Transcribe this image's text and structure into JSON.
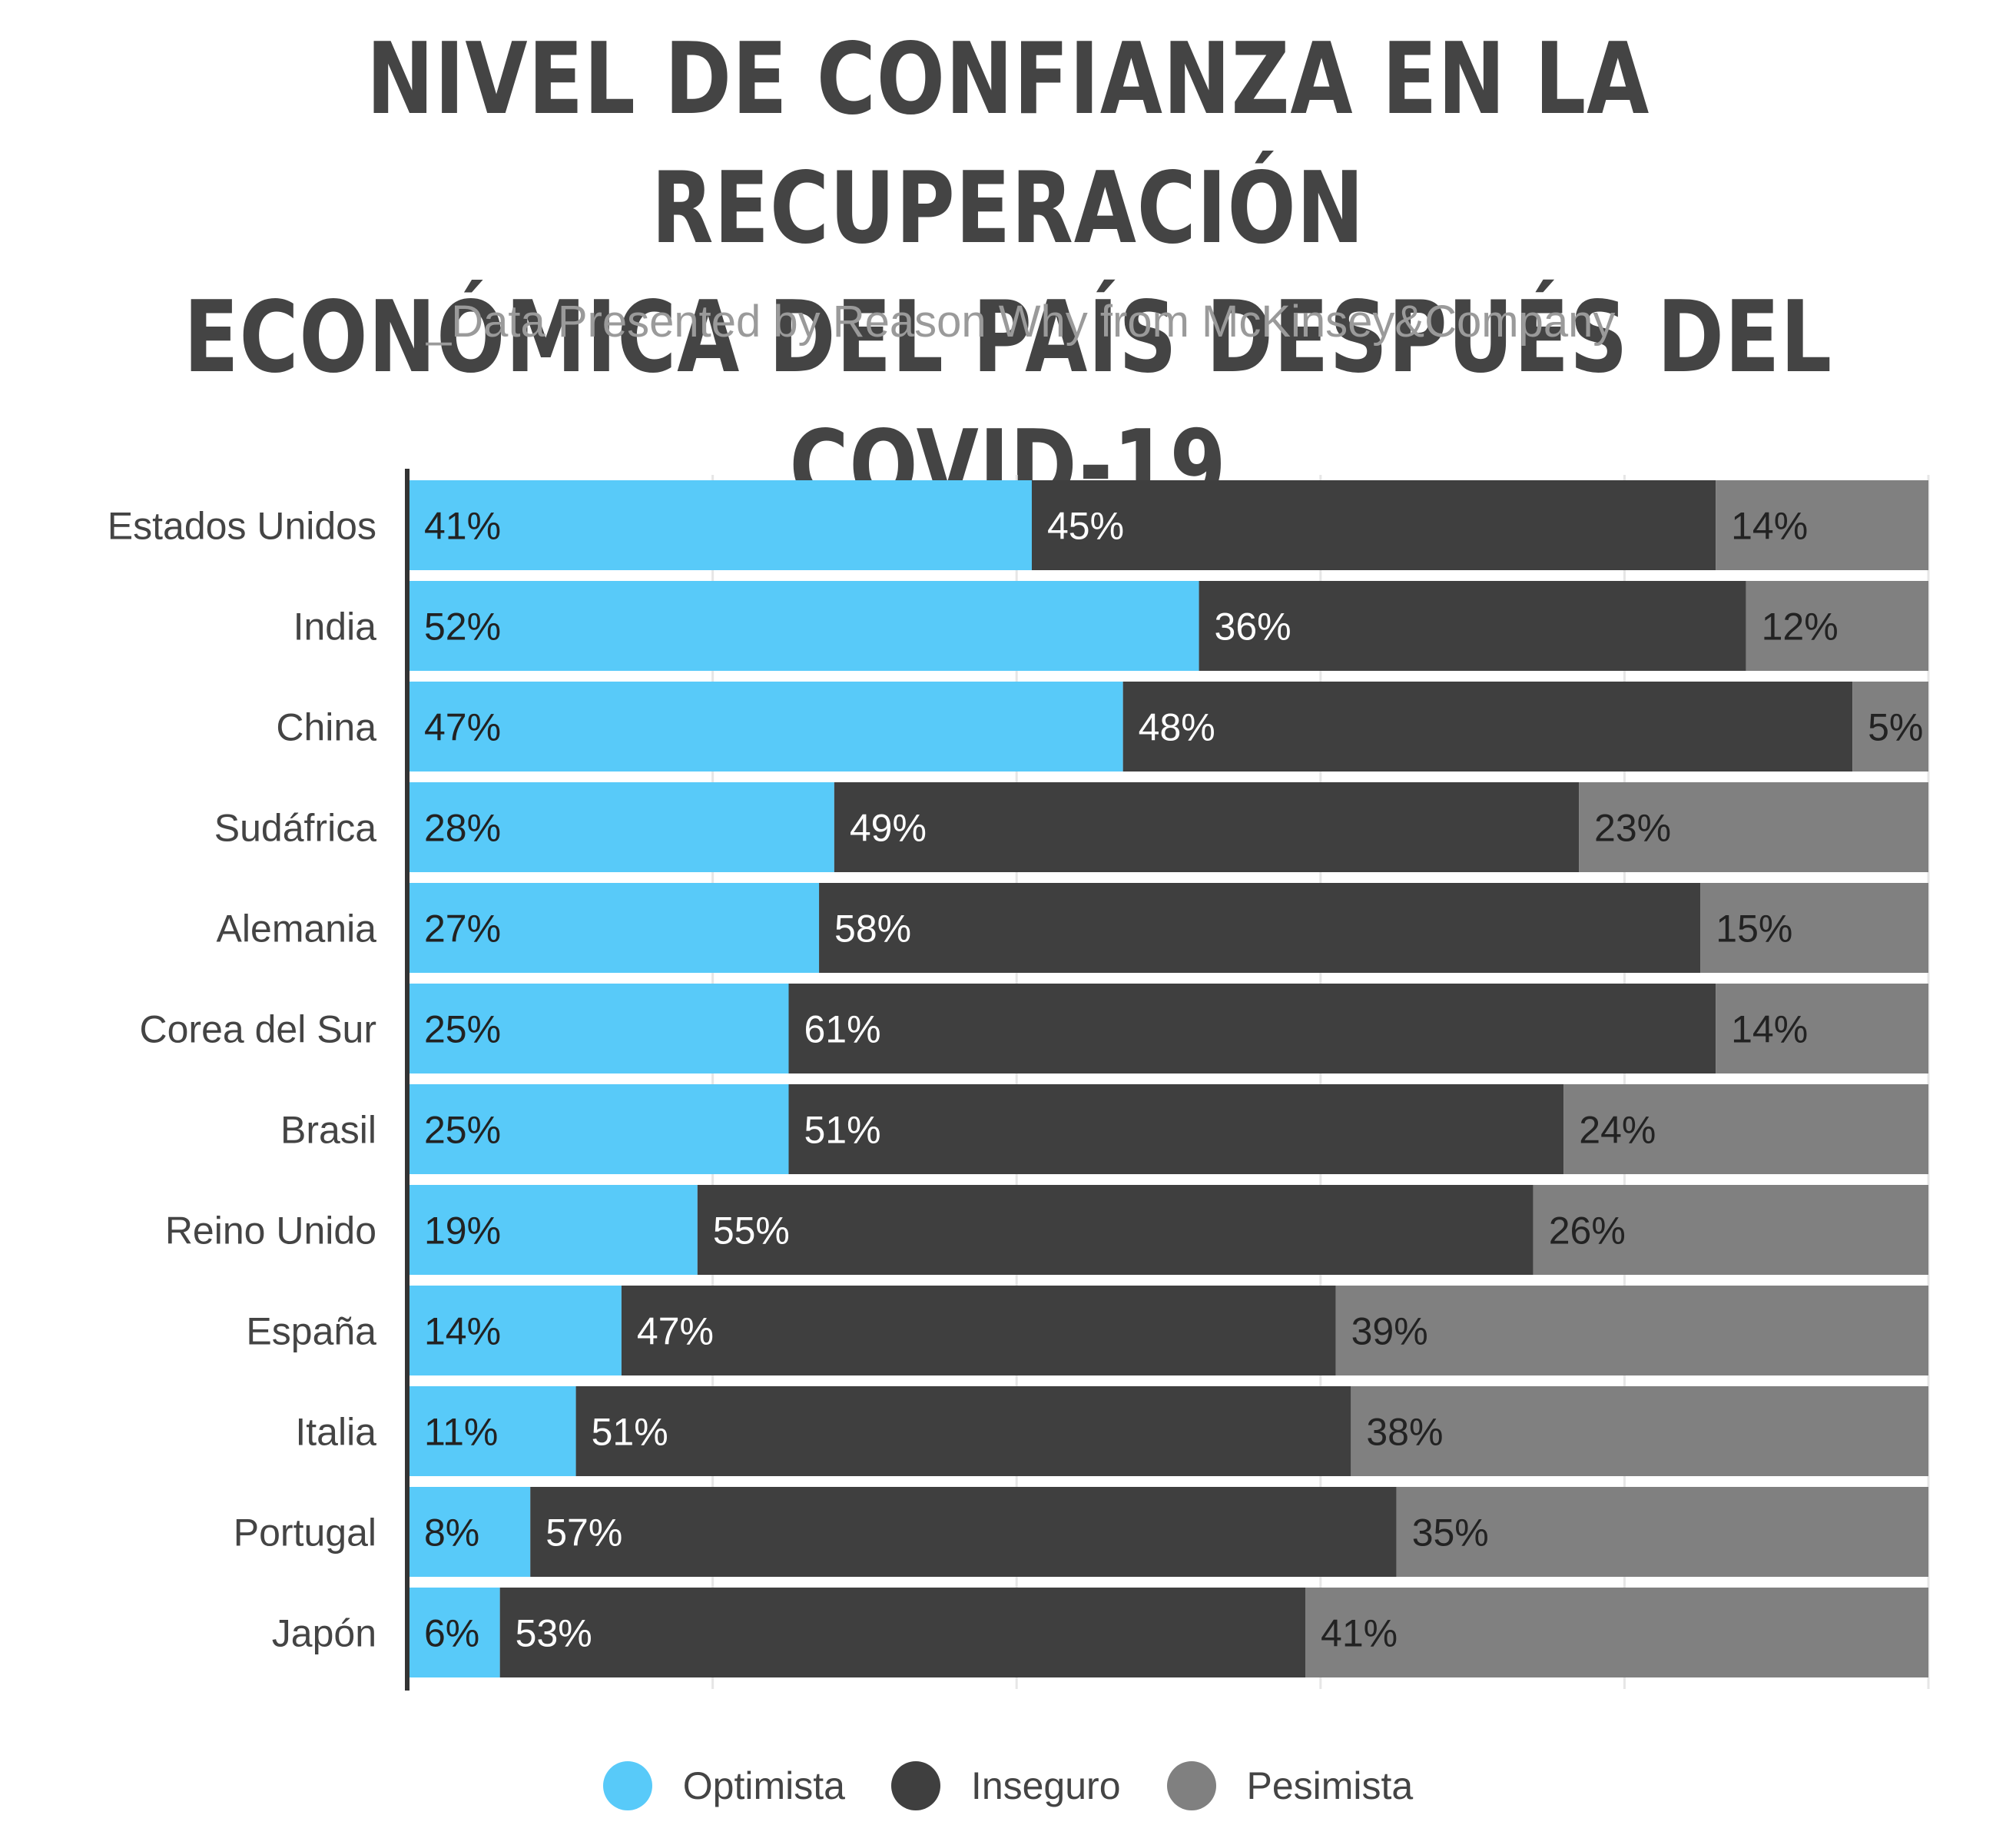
{
  "title_lines": [
    "NIVEL DE CONFIANZA EN LA RECUPERACIÓN",
    "ECONÓMICA DEL PAÍS DESPUÉS DEL COVID-19"
  ],
  "subtitle": "_Data Presented by Reason Why from McKinsey&Company",
  "colors": {
    "optimista": "#58caf9",
    "inseguro": "#3f3f3f",
    "pesimista": "#808080",
    "axis": "#333333",
    "grid": "#e6e6e6"
  },
  "legend": [
    {
      "label": "Optimista",
      "color": "#58caf9"
    },
    {
      "label": "Inseguro",
      "color": "#3f3f3f"
    },
    {
      "label": "Pesimista",
      "color": "#808080"
    }
  ],
  "chart_data": {
    "type": "bar",
    "orientation": "horizontal",
    "stacked": true,
    "categories": [
      "Estados Unidos",
      "India",
      "China",
      "Sudáfrica",
      "Alemania",
      "Corea del Sur",
      "Brasil",
      "Reino Unido",
      "España",
      "Italia",
      "Portugal",
      "Japón"
    ],
    "series": [
      {
        "name": "Optimista",
        "values": [
          41,
          52,
          47,
          28,
          27,
          25,
          25,
          19,
          14,
          11,
          8,
          6
        ],
        "labels": [
          "41%",
          "52%",
          "47%",
          "28%",
          "27%",
          "25%",
          "25%",
          "19%",
          "14%",
          "11%",
          "8%",
          "6%"
        ]
      },
      {
        "name": "Inseguro",
        "values": [
          45,
          36,
          48,
          49,
          58,
          61,
          51,
          55,
          47,
          51,
          57,
          53
        ],
        "labels": [
          "45%",
          "36%",
          "48%",
          "49%",
          "58%",
          "61%",
          "51%",
          "55%",
          "47%",
          "51%",
          "57%",
          "53%"
        ]
      },
      {
        "name": "Pesimista",
        "values": [
          14,
          12,
          5,
          23,
          15,
          14,
          24,
          26,
          39,
          38,
          35,
          41
        ],
        "labels": [
          "14%",
          "12%",
          "5%",
          "23%",
          "15%",
          "14%",
          "24%",
          "26%",
          "39%",
          "38%",
          "35%",
          "41%"
        ]
      }
    ],
    "xlim": [
      0,
      100
    ],
    "grid": true,
    "legend_position": "bottom"
  }
}
